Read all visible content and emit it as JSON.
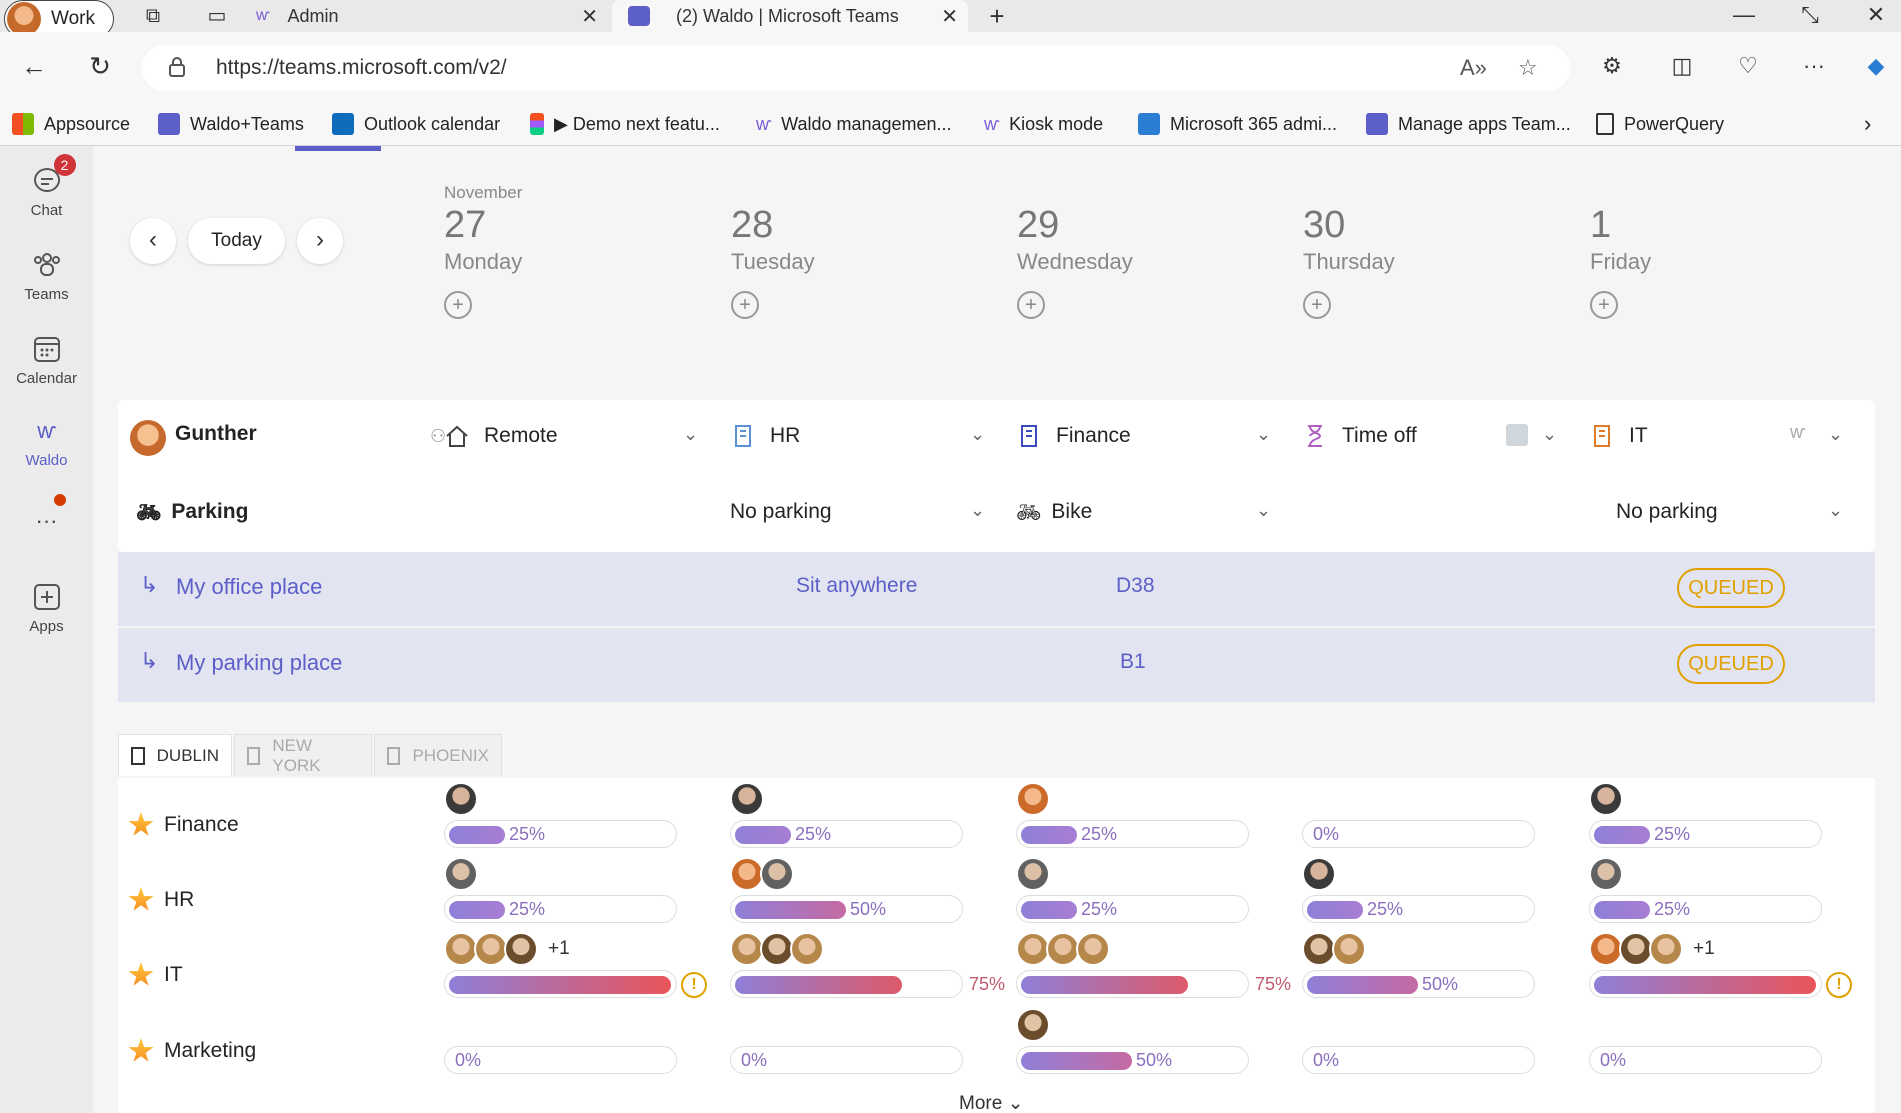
{
  "browser": {
    "profile_label": "Work",
    "tabs": [
      {
        "label": "Admin"
      },
      {
        "label": "(2) Waldo | Microsoft Teams"
      }
    ],
    "url": "https://teams.microsoft.com/v2/",
    "favorites": [
      {
        "label": "Appsource"
      },
      {
        "label": "Waldo+Teams"
      },
      {
        "label": "Outlook calendar"
      },
      {
        "label": "▶ Demo next featu..."
      },
      {
        "label": "Waldo managemen..."
      },
      {
        "label": "Kiosk mode"
      },
      {
        "label": "Microsoft 365 admi..."
      },
      {
        "label": "Manage apps Team..."
      },
      {
        "label": "PowerQuery"
      }
    ]
  },
  "rail": {
    "items": [
      {
        "label": "Chat",
        "badge": "2"
      },
      {
        "label": "Teams"
      },
      {
        "label": "Calendar"
      },
      {
        "label": "Waldo"
      },
      {
        "label": "Apps"
      }
    ]
  },
  "calendar": {
    "today_label": "Today",
    "month": "November",
    "days": [
      {
        "num": "27",
        "name": "Monday"
      },
      {
        "num": "28",
        "name": "Tuesday"
      },
      {
        "num": "29",
        "name": "Wednesday"
      },
      {
        "num": "30",
        "name": "Thursday"
      },
      {
        "num": "1",
        "name": "Friday"
      }
    ]
  },
  "person": {
    "name": "Gunther",
    "locations": [
      "Remote",
      "HR",
      "Finance",
      "Time off",
      "IT"
    ],
    "parking_label": "Parking",
    "parking": [
      "",
      "No parking",
      "Bike",
      "",
      "No parking"
    ]
  },
  "office_place": {
    "label": "My office place",
    "values": [
      "Sit anywhere",
      "D38"
    ],
    "status": "QUEUED"
  },
  "parking_place": {
    "label": "My parking place",
    "values": [
      "B1"
    ],
    "status": "QUEUED"
  },
  "city_tabs": [
    "DUBLIN",
    "NEW YORK",
    "PHOENIX"
  ],
  "occupancy": {
    "departments": [
      "Finance",
      "HR",
      "IT",
      "Marketing"
    ],
    "rows": [
      [
        "25%",
        "25%",
        "25%",
        "0%",
        "25%"
      ],
      [
        "25%",
        "50%",
        "25%",
        "25%",
        "25%"
      ],
      [
        "",
        "75%",
        "75%",
        "50%",
        ""
      ],
      [
        "0%",
        "0%",
        "50%",
        "0%",
        "0%"
      ]
    ],
    "levels": [
      [
        25,
        25,
        25,
        0,
        25
      ],
      [
        25,
        50,
        25,
        25,
        25
      ],
      [
        100,
        75,
        75,
        50,
        100
      ],
      [
        0,
        0,
        50,
        0,
        0
      ]
    ],
    "extra_count": "+1",
    "warning_symbol": "!",
    "more_label": "More"
  }
}
